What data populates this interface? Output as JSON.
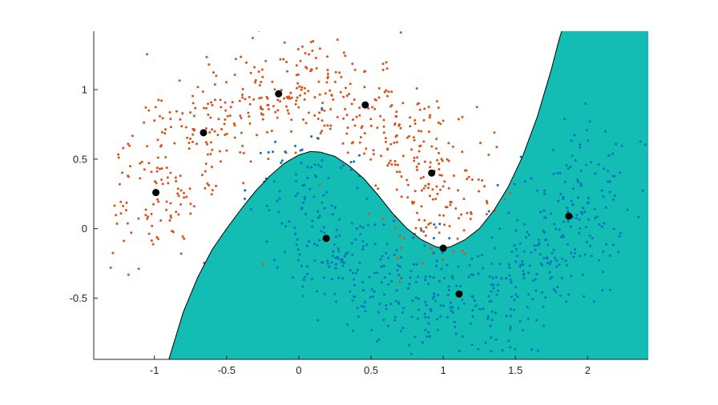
{
  "chart_data": {
    "type": "scatter",
    "title": "",
    "xlabel": "",
    "ylabel": "",
    "xlim": [
      -1.42,
      2.42
    ],
    "ylim": [
      -0.94,
      1.42
    ],
    "xticks": [
      "-1",
      "-0.5",
      "0",
      "0.5",
      "1",
      "1.5",
      "2"
    ],
    "yticks": [
      "-0.5",
      "0",
      "0.5",
      "1"
    ],
    "grid": false,
    "colors": {
      "class_a": "#d95319",
      "class_b": "#0072bd",
      "region": "#13bdb4",
      "boundary": "#000000",
      "centers": "#000000",
      "axis": "#262626"
    },
    "decision_boundary": [
      [
        -0.9,
        -0.94
      ],
      [
        -0.8,
        -0.6
      ],
      [
        -0.7,
        -0.35
      ],
      [
        -0.6,
        -0.15
      ],
      [
        -0.5,
        0.0
      ],
      [
        -0.4,
        0.14
      ],
      [
        -0.3,
        0.27
      ],
      [
        -0.2,
        0.38
      ],
      [
        -0.1,
        0.47
      ],
      [
        0.0,
        0.53
      ],
      [
        0.08,
        0.555
      ],
      [
        0.15,
        0.55
      ],
      [
        0.25,
        0.52
      ],
      [
        0.35,
        0.45
      ],
      [
        0.45,
        0.36
      ],
      [
        0.55,
        0.24
      ],
      [
        0.65,
        0.11
      ],
      [
        0.75,
        0.0
      ],
      [
        0.85,
        -0.08
      ],
      [
        0.95,
        -0.13
      ],
      [
        1.0,
        -0.14
      ],
      [
        1.05,
        -0.13
      ],
      [
        1.15,
        -0.08
      ],
      [
        1.25,
        0.0
      ],
      [
        1.35,
        0.13
      ],
      [
        1.45,
        0.3
      ],
      [
        1.55,
        0.52
      ],
      [
        1.65,
        0.8
      ],
      [
        1.75,
        1.15
      ],
      [
        1.8,
        1.35
      ],
      [
        1.82,
        1.42
      ]
    ],
    "centers": [
      {
        "x": -0.99,
        "y": 0.26
      },
      {
        "x": -0.66,
        "y": 0.69
      },
      {
        "x": -0.14,
        "y": 0.97
      },
      {
        "x": 0.46,
        "y": 0.89
      },
      {
        "x": 0.92,
        "y": 0.4
      },
      {
        "x": 0.19,
        "y": -0.07
      },
      {
        "x": 1.0,
        "y": -0.14
      },
      {
        "x": 1.11,
        "y": -0.47
      },
      {
        "x": 1.87,
        "y": 0.09
      }
    ],
    "series": [
      {
        "label_class": "class_a",
        "count": 600,
        "noise": 0.2,
        "seed": 7
      },
      {
        "label_class": "class_b",
        "count": 600,
        "noise": 0.2,
        "seed": 13
      }
    ]
  }
}
